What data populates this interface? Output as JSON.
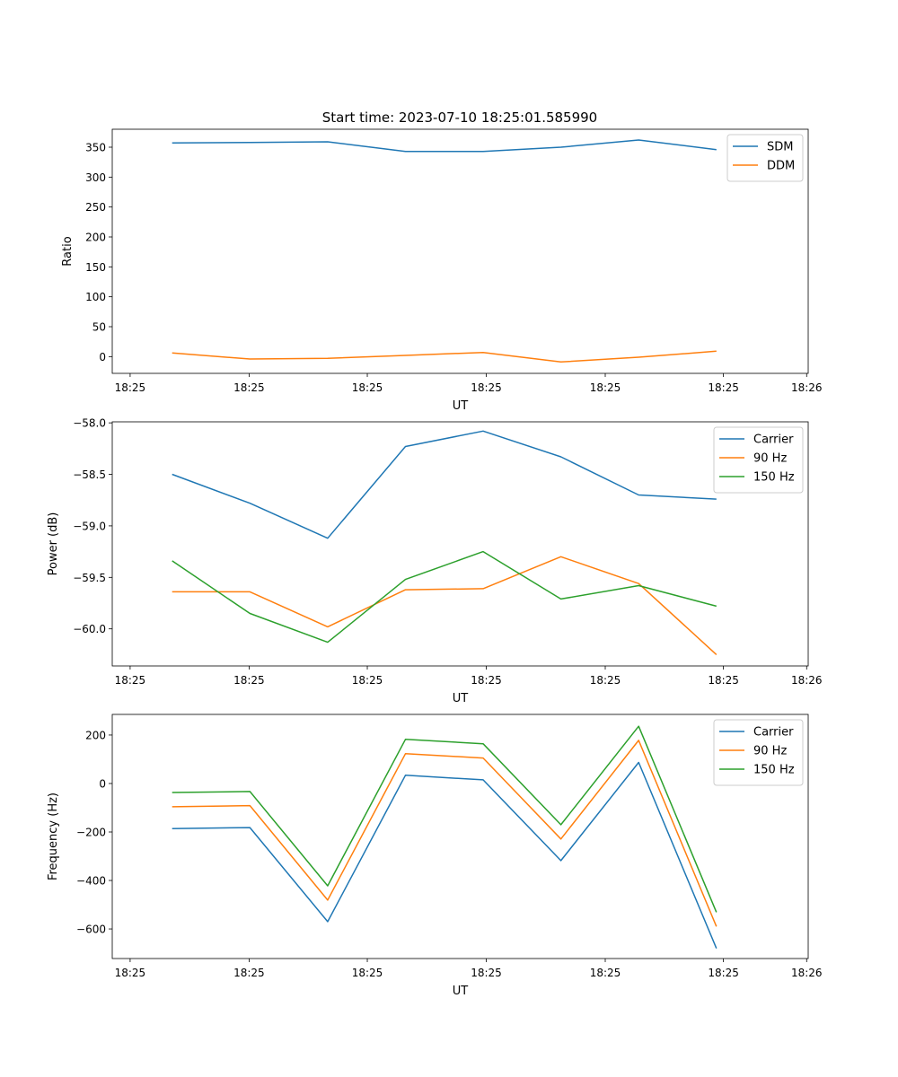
{
  "figure": {
    "title": "Start time: 2023-07-10 18:25:01.585990"
  },
  "colors": {
    "blue": "#1f77b4",
    "orange": "#ff7f0e",
    "green": "#2ca02c"
  },
  "chart_data": [
    {
      "type": "line",
      "title": "Start time: 2023-07-10 18:25:01.585990",
      "xlabel": "UT",
      "ylabel": "Ratio",
      "x": [
        1,
        2,
        3,
        4,
        5,
        6,
        7,
        8
      ],
      "xlim": [
        0.23,
        9.18
      ],
      "xticks": [
        0.46,
        1.99,
        3.51,
        5.04,
        6.57,
        8.09,
        9.16
      ],
      "xtick_labels": [
        "18:25",
        "18:25",
        "18:25",
        "18:25",
        "18:25",
        "18:25",
        "18:26"
      ],
      "ylim": [
        -28,
        380
      ],
      "yticks": [
        0,
        50,
        100,
        150,
        200,
        250,
        300,
        350
      ],
      "ytick_labels": [
        "0",
        "50",
        "100",
        "150",
        "200",
        "250",
        "300",
        "350"
      ],
      "legend": "top-right",
      "series": [
        {
          "name": "SDM",
          "color": "#1f77b4",
          "values": [
            357,
            358,
            359,
            343,
            343,
            350,
            362,
            346
          ]
        },
        {
          "name": "DDM",
          "color": "#ff7f0e",
          "values": [
            6,
            -4,
            -3,
            2,
            7,
            -9,
            -1,
            9
          ]
        }
      ]
    },
    {
      "type": "line",
      "title": "",
      "xlabel": "UT",
      "ylabel": "Power (dB)",
      "x": [
        1,
        2,
        3,
        4,
        5,
        6,
        7,
        8
      ],
      "xlim": [
        0.23,
        9.18
      ],
      "xticks": [
        0.46,
        1.99,
        3.51,
        5.04,
        6.57,
        8.09,
        9.16
      ],
      "xtick_labels": [
        "18:25",
        "18:25",
        "18:25",
        "18:25",
        "18:25",
        "18:25",
        "18:26"
      ],
      "ylim": [
        -60.36,
        -57.99
      ],
      "yticks": [
        -60.0,
        -59.5,
        -59.0,
        -58.5,
        -58.0
      ],
      "ytick_labels": [
        "−60.0",
        "−59.5",
        "−59.0",
        "−58.5",
        "−58.0"
      ],
      "legend": "top-right",
      "series": [
        {
          "name": "Carrier",
          "color": "#1f77b4",
          "values": [
            -58.5,
            -58.78,
            -59.12,
            -58.23,
            -58.08,
            -58.33,
            -58.7,
            -58.74
          ]
        },
        {
          "name": "90 Hz",
          "color": "#ff7f0e",
          "values": [
            -59.64,
            -59.64,
            -59.98,
            -59.62,
            -59.61,
            -59.3,
            -59.56,
            -60.25
          ]
        },
        {
          "name": "150 Hz",
          "color": "#2ca02c",
          "values": [
            -59.34,
            -59.85,
            -60.13,
            -59.52,
            -59.25,
            -59.71,
            -59.58,
            -59.78
          ]
        }
      ]
    },
    {
      "type": "line",
      "title": "",
      "xlabel": "UT",
      "ylabel": "Frequency (Hz)",
      "x": [
        1,
        2,
        3,
        4,
        5,
        6,
        7,
        8
      ],
      "xlim": [
        0.23,
        9.18
      ],
      "xticks": [
        0.46,
        1.99,
        3.51,
        5.04,
        6.57,
        8.09,
        9.16
      ],
      "xtick_labels": [
        "18:25",
        "18:25",
        "18:25",
        "18:25",
        "18:25",
        "18:25",
        "18:26"
      ],
      "ylim": [
        -722,
        285
      ],
      "yticks": [
        -600,
        -400,
        -200,
        0,
        200
      ],
      "ytick_labels": [
        "−600",
        "−400",
        "−200",
        "0",
        "200"
      ],
      "legend": "top-right",
      "series": [
        {
          "name": "Carrier",
          "color": "#1f77b4",
          "values": [
            -186,
            -182,
            -570,
            34,
            15,
            -318,
            87,
            -680
          ]
        },
        {
          "name": "90 Hz",
          "color": "#ff7f0e",
          "values": [
            -96,
            -91,
            -481,
            123,
            105,
            -229,
            178,
            -590
          ]
        },
        {
          "name": "150 Hz",
          "color": "#2ca02c",
          "values": [
            -37,
            -33,
            -422,
            182,
            164,
            -170,
            236,
            -531
          ]
        }
      ]
    }
  ]
}
